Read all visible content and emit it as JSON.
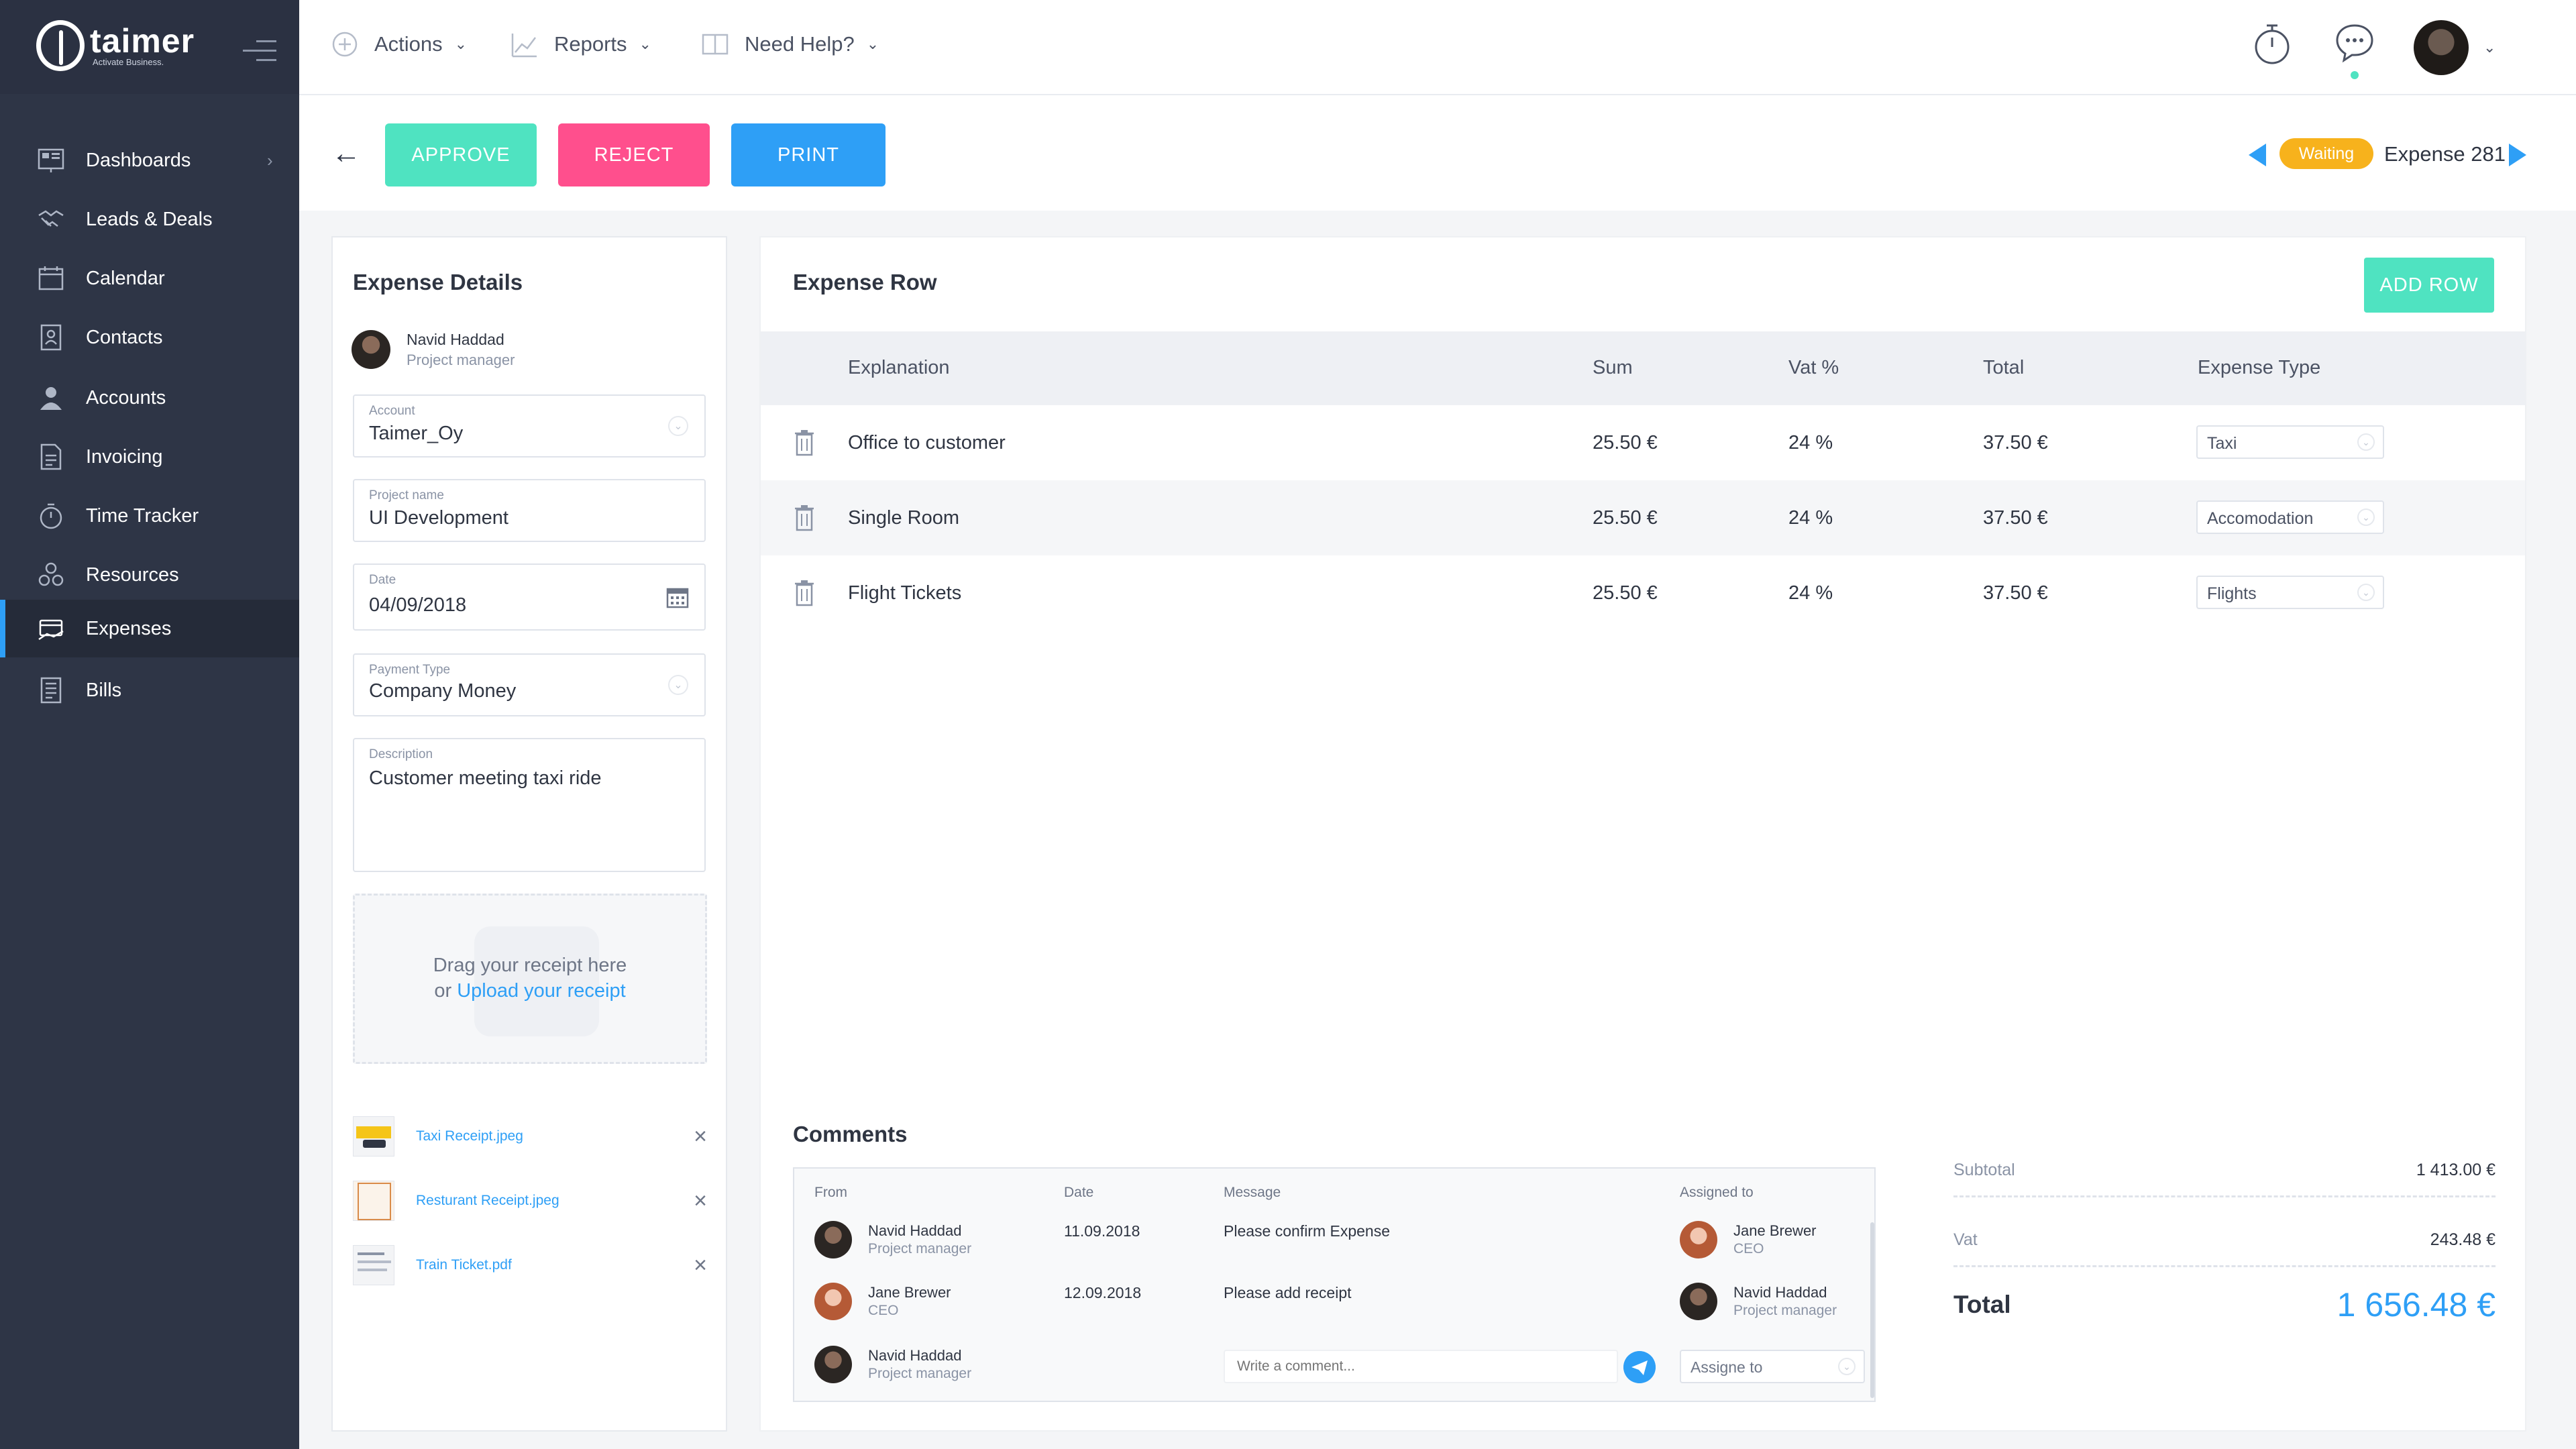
{
  "app": {
    "name": "taimer",
    "tagline": "Activate Business."
  },
  "sidebar": {
    "items": [
      {
        "label": "Dashboards",
        "icon": "dashboard-icon",
        "has_arrow": true
      },
      {
        "label": "Leads & Deals",
        "icon": "handshake-icon"
      },
      {
        "label": "Calendar",
        "icon": "calendar-icon"
      },
      {
        "label": "Contacts",
        "icon": "contacts-icon"
      },
      {
        "label": "Accounts",
        "icon": "accounts-icon"
      },
      {
        "label": "Invoicing",
        "icon": "invoice-icon"
      },
      {
        "label": "Time Tracker",
        "icon": "stopwatch-icon"
      },
      {
        "label": "Resources",
        "icon": "resources-icon"
      },
      {
        "label": "Expenses",
        "icon": "expenses-icon",
        "active": true
      },
      {
        "label": "Bills",
        "icon": "bills-icon"
      }
    ]
  },
  "topbar": {
    "actions": "Actions",
    "reports": "Reports",
    "help": "Need Help?"
  },
  "actionbar": {
    "approve": "APPROVE",
    "reject": "REJECT",
    "print": "PRINT",
    "status": "Waiting",
    "expense_title": "Expense 281",
    "status_color": "#f7b21c"
  },
  "details": {
    "title": "Expense Details",
    "owner": {
      "name": "Navid Haddad",
      "role": "Project manager"
    },
    "account": {
      "label": "Account",
      "value": "Taimer_Oy"
    },
    "project": {
      "label": "Project name",
      "value": "UI Development"
    },
    "date": {
      "label": "Date",
      "value": "04/09/2018"
    },
    "payment": {
      "label": "Payment Type",
      "value": "Company Money"
    },
    "description": {
      "label": "Description",
      "value": "Customer meeting taxi ride"
    },
    "dropzone": {
      "line1": "Drag your receipt here",
      "or": "or",
      "upload": "Upload",
      "your_receipt": "your receipt"
    },
    "files": [
      "Taxi Receipt.jpeg",
      "Resturant Receipt.jpeg",
      "Train Ticket.pdf"
    ]
  },
  "expense_rows": {
    "title": "Expense Row",
    "add_row": "ADD ROW",
    "columns": [
      "Explanation",
      "Sum",
      "Vat %",
      "Total",
      "Expense Type"
    ],
    "rows": [
      {
        "explanation": "Office to customer",
        "sum": "25.50 €",
        "vat": "24 %",
        "total": "37.50 €",
        "type": "Taxi"
      },
      {
        "explanation": "Single Room",
        "sum": "25.50 €",
        "vat": "24 %",
        "total": "37.50 €",
        "type": "Accomodation"
      },
      {
        "explanation": "Flight Tickets",
        "sum": "25.50 €",
        "vat": "24 %",
        "total": "37.50 €",
        "type": "Flights"
      }
    ]
  },
  "comments": {
    "title": "Comments",
    "columns": {
      "from": "From",
      "date": "Date",
      "message": "Message",
      "assigned": "Assigned to"
    },
    "rows": [
      {
        "from_name": "Navid Haddad",
        "from_role": "Project manager",
        "date": "11.09.2018",
        "message": "Please confirm Expense",
        "assigned_name": "Jane Brewer",
        "assigned_role": "CEO"
      },
      {
        "from_name": "Jane Brewer",
        "from_role": "CEO",
        "date": "12.09.2018",
        "message": "Please add receipt",
        "assigned_name": "Navid Haddad",
        "assigned_role": "Project manager"
      }
    ],
    "composer": {
      "name": "Navid Haddad",
      "role": "Project manager",
      "placeholder": "Write a comment...",
      "assign_placeholder": "Assigne to"
    }
  },
  "totals": {
    "subtotal_label": "Subtotal",
    "subtotal": "1 413.00 €",
    "vat_label": "Vat",
    "vat": "243.48 €",
    "total_label": "Total",
    "total": "1 656.48 €",
    "total_color": "#2e9ff6"
  }
}
